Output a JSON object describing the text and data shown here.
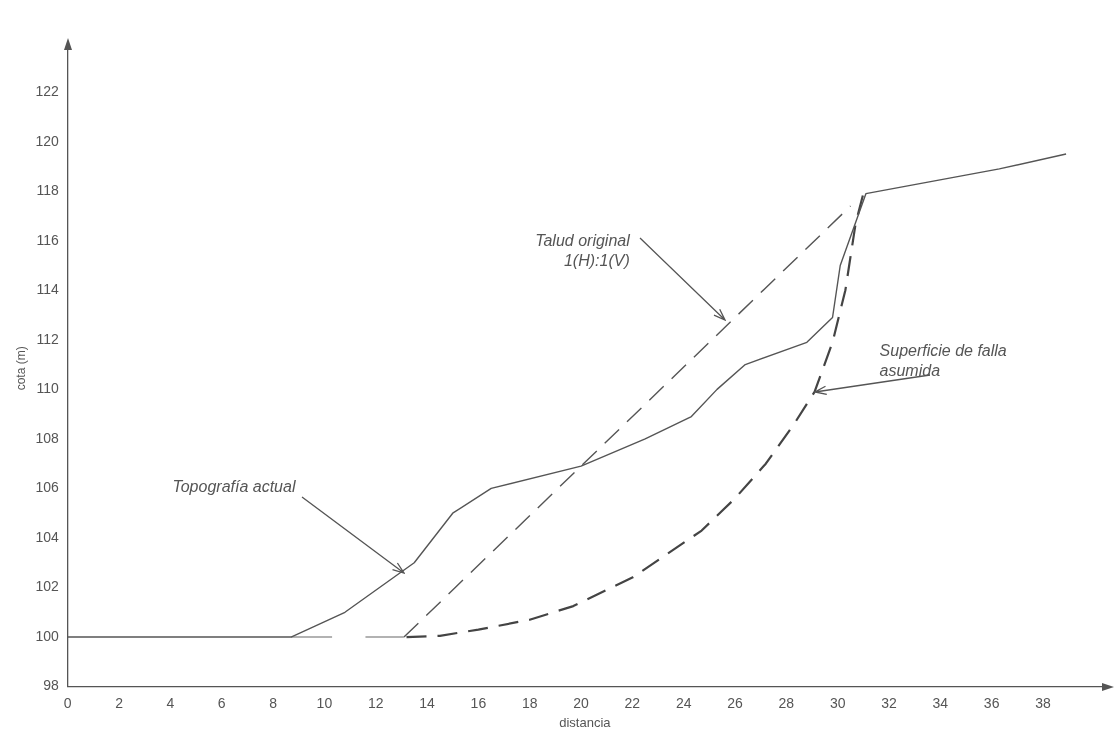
{
  "chart_data": {
    "type": "line",
    "xlabel": "distancia",
    "ylabel": "cota (m)",
    "xlim": [
      0,
      40.3
    ],
    "ylim": [
      98,
      123.7
    ],
    "xticks": [
      0,
      2,
      4,
      6,
      8,
      10,
      12,
      14,
      16,
      18,
      20,
      22,
      24,
      26,
      28,
      30,
      32,
      34,
      36,
      38
    ],
    "yticks": [
      98,
      100,
      102,
      104,
      106,
      108,
      110,
      112,
      114,
      116,
      118,
      120,
      122
    ],
    "grid": false,
    "legend": false,
    "marker": "none",
    "series": [
      {
        "color": "#555555",
        "line_style": "solid",
        "x": [
          0,
          8.7,
          10.8,
          13.5,
          15.0,
          16.5,
          20.0,
          22.5,
          24.3,
          25.3,
          26.4,
          28.8,
          29.8,
          30.1,
          31.1,
          36.3,
          38.9
        ],
        "values": [
          100,
          100,
          101,
          103,
          105,
          106,
          106.9,
          108,
          108.9,
          110,
          111,
          111.9,
          112.9,
          115,
          117.9,
          118.9,
          119.5
        ]
      },
      {
        "color": "#999999",
        "line_style": "solid",
        "x": [
          8.7,
          10.3,
          10.95,
          11.6,
          13.1
        ],
        "values": [
          100,
          100,
          null,
          100,
          100
        ]
      },
      {
        "color": "#555555",
        "line_style": "dashed",
        "x": [
          13.1,
          30.5
        ],
        "values": [
          100,
          117.4
        ]
      },
      {
        "color": "#444444",
        "line_style": "dashed",
        "x": [
          13.2,
          14.5,
          16,
          18,
          19.7,
          22,
          24.7,
          26,
          27.2,
          28.3,
          29.1,
          29.8,
          30.3,
          30.7,
          31.0
        ],
        "values": [
          100,
          100.05,
          100.3,
          100.7,
          101.25,
          102.4,
          104.3,
          105.6,
          107,
          108.6,
          109.9,
          111.9,
          114,
          116.7,
          117.9
        ]
      }
    ],
    "annotations": [
      {
        "text": "Topografía actual",
        "x": 13.1,
        "y": 102.6
      },
      {
        "text": "Talud original\n1(H):1(V)",
        "x": 25.6,
        "y": 112.8
      },
      {
        "text": "Superficie de falla\nasumida",
        "x": 29.1,
        "y": 109.9
      }
    ]
  }
}
